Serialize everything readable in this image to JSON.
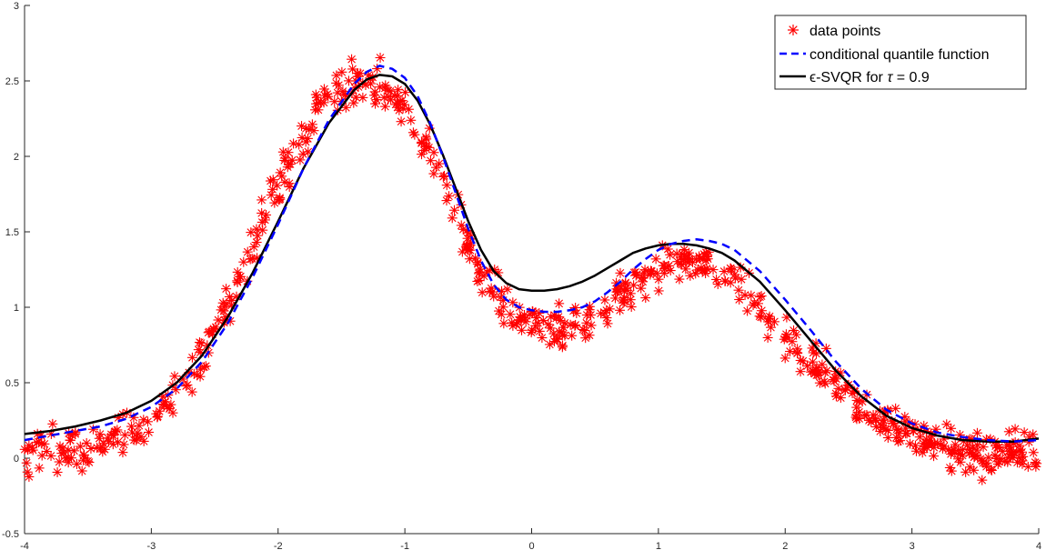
{
  "chart_data": {
    "type": "scatter",
    "xlim": [
      -4,
      4
    ],
    "ylim": [
      -0.5,
      3
    ],
    "xticks": [
      -4,
      -3,
      -2,
      -1,
      0,
      1,
      2,
      3,
      4
    ],
    "xtick_labels": [
      "-4",
      "-3",
      "-2",
      "-1",
      "0",
      "1",
      "2",
      "3",
      "4"
    ],
    "yticks": [
      -0.5,
      0,
      0.5,
      1,
      1.5,
      2,
      2.5,
      3
    ],
    "ytick_labels": [
      "-0.5",
      "0",
      "0.5",
      "1",
      "1.5",
      "2",
      "2.5",
      "3"
    ],
    "grid": false,
    "legend_position": "top-right",
    "legend": {
      "data_points": "data points",
      "quantile": "conditional quantile function",
      "svqr_prefix": "ϵ-SVQR for ",
      "svqr_tau": "τ",
      "svqr_suffix": " = 0.9"
    },
    "series": [
      {
        "name": "data points",
        "style": "scatter",
        "marker": "asterisk",
        "color": "#ff0000",
        "x": [
          -4.0,
          -3.9,
          -3.8,
          -3.7,
          -3.6,
          -3.5,
          -3.4,
          -3.3,
          -3.2,
          -3.1,
          -3.0,
          -2.9,
          -2.8,
          -2.7,
          -2.6,
          -2.5,
          -2.4,
          -2.3,
          -2.2,
          -2.1,
          -2.0,
          -1.9,
          -1.8,
          -1.7,
          -1.6,
          -1.5,
          -1.4,
          -1.3,
          -1.2,
          -1.1,
          -1.0,
          -0.9,
          -0.8,
          -0.7,
          -0.6,
          -0.5,
          -0.4,
          -0.3,
          -0.2,
          -0.1,
          0.0,
          0.1,
          0.2,
          0.3,
          0.4,
          0.5,
          0.6,
          0.7,
          0.8,
          0.9,
          1.0,
          1.1,
          1.2,
          1.3,
          1.4,
          1.5,
          1.6,
          1.7,
          1.8,
          1.9,
          2.0,
          2.1,
          2.2,
          2.3,
          2.4,
          2.5,
          2.6,
          2.7,
          2.8,
          2.9,
          3.0,
          3.1,
          3.2,
          3.3,
          3.4,
          3.5,
          3.6,
          3.7,
          3.8,
          3.9,
          4.0
        ],
        "y": [
          0.02,
          0.04,
          0.05,
          0.06,
          0.07,
          0.08,
          0.1,
          0.12,
          0.15,
          0.19,
          0.25,
          0.32,
          0.41,
          0.52,
          0.65,
          0.81,
          0.99,
          1.18,
          1.39,
          1.6,
          1.8,
          1.98,
          2.13,
          2.26,
          2.37,
          2.45,
          2.49,
          2.5,
          2.47,
          2.41,
          2.31,
          2.17,
          2.0,
          1.81,
          1.61,
          1.42,
          1.24,
          1.1,
          1.0,
          0.93,
          0.89,
          0.86,
          0.85,
          0.86,
          0.89,
          0.94,
          1.0,
          1.08,
          1.16,
          1.22,
          1.26,
          1.28,
          1.29,
          1.28,
          1.26,
          1.22,
          1.17,
          1.1,
          1.02,
          0.93,
          0.84,
          0.75,
          0.66,
          0.58,
          0.5,
          0.43,
          0.36,
          0.3,
          0.25,
          0.21,
          0.17,
          0.14,
          0.11,
          0.08,
          0.06,
          0.04,
          0.03,
          0.03,
          0.03,
          0.04,
          0.04
        ],
        "spread": 0.14
      },
      {
        "name": "conditional quantile function",
        "style": "dashed",
        "color": "#0000ff",
        "x": [
          -4.0,
          -3.8,
          -3.6,
          -3.4,
          -3.2,
          -3.0,
          -2.8,
          -2.6,
          -2.4,
          -2.2,
          -2.0,
          -1.8,
          -1.6,
          -1.4,
          -1.3,
          -1.2,
          -1.1,
          -1.0,
          -0.9,
          -0.8,
          -0.7,
          -0.6,
          -0.5,
          -0.4,
          -0.3,
          -0.2,
          -0.1,
          0.0,
          0.1,
          0.2,
          0.3,
          0.4,
          0.5,
          0.6,
          0.7,
          0.8,
          0.9,
          1.0,
          1.1,
          1.2,
          1.3,
          1.4,
          1.5,
          1.6,
          1.8,
          2.0,
          2.2,
          2.4,
          2.6,
          2.8,
          3.0,
          3.2,
          3.4,
          3.6,
          3.8,
          4.0
        ],
        "y": [
          0.12,
          0.15,
          0.18,
          0.21,
          0.26,
          0.34,
          0.46,
          0.64,
          0.89,
          1.2,
          1.55,
          1.92,
          2.24,
          2.48,
          2.56,
          2.6,
          2.58,
          2.52,
          2.4,
          2.22,
          2.0,
          1.76,
          1.52,
          1.31,
          1.15,
          1.05,
          1.0,
          0.98,
          0.97,
          0.97,
          0.98,
          1.0,
          1.04,
          1.1,
          1.17,
          1.25,
          1.32,
          1.38,
          1.42,
          1.44,
          1.45,
          1.44,
          1.42,
          1.38,
          1.24,
          1.05,
          0.85,
          0.64,
          0.46,
          0.32,
          0.23,
          0.17,
          0.14,
          0.12,
          0.11,
          0.12
        ]
      },
      {
        "name": "ϵ-SVQR for τ = 0.9",
        "style": "solid",
        "color": "#000000",
        "x": [
          -4.0,
          -3.8,
          -3.6,
          -3.4,
          -3.2,
          -3.0,
          -2.8,
          -2.6,
          -2.4,
          -2.2,
          -2.0,
          -1.8,
          -1.6,
          -1.4,
          -1.3,
          -1.2,
          -1.1,
          -1.0,
          -0.9,
          -0.8,
          -0.7,
          -0.6,
          -0.5,
          -0.4,
          -0.3,
          -0.2,
          -0.1,
          0.0,
          0.1,
          0.2,
          0.3,
          0.4,
          0.5,
          0.6,
          0.7,
          0.8,
          0.9,
          1.0,
          1.1,
          1.2,
          1.3,
          1.4,
          1.5,
          1.6,
          1.8,
          2.0,
          2.2,
          2.4,
          2.6,
          2.8,
          3.0,
          3.2,
          3.4,
          3.6,
          3.8,
          4.0
        ],
        "y": [
          0.16,
          0.18,
          0.21,
          0.25,
          0.3,
          0.38,
          0.5,
          0.68,
          0.93,
          1.23,
          1.57,
          1.92,
          2.22,
          2.44,
          2.51,
          2.54,
          2.53,
          2.48,
          2.37,
          2.21,
          2.01,
          1.79,
          1.57,
          1.38,
          1.24,
          1.16,
          1.12,
          1.11,
          1.11,
          1.12,
          1.14,
          1.17,
          1.21,
          1.26,
          1.31,
          1.36,
          1.39,
          1.41,
          1.42,
          1.42,
          1.41,
          1.39,
          1.36,
          1.31,
          1.17,
          0.98,
          0.78,
          0.58,
          0.41,
          0.28,
          0.2,
          0.15,
          0.12,
          0.11,
          0.11,
          0.13
        ]
      }
    ]
  }
}
